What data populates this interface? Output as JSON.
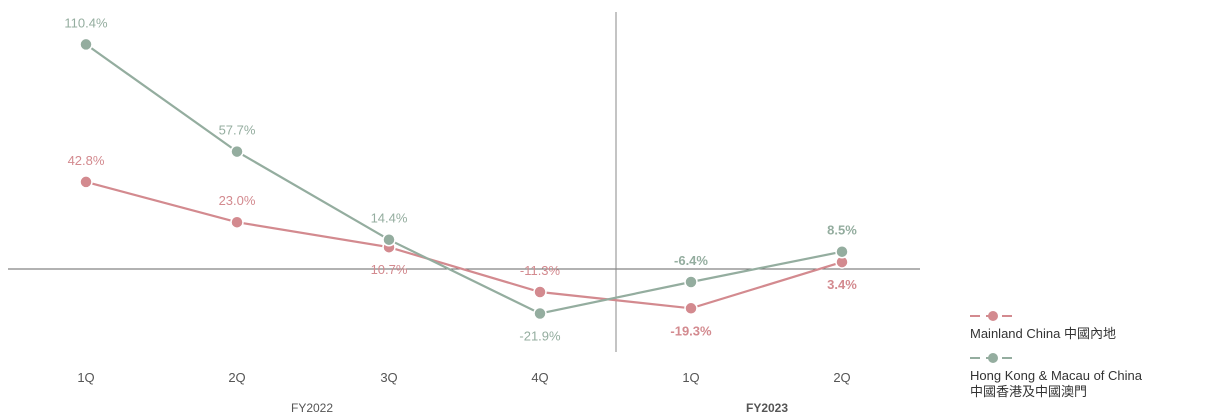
{
  "chart_data": {
    "type": "line",
    "categories": [
      "1Q",
      "2Q",
      "3Q",
      "4Q",
      "1Q",
      "2Q"
    ],
    "groups": [
      {
        "label": "FY2022",
        "bold": false
      },
      {
        "label": "FY2023",
        "bold": true
      }
    ],
    "series": [
      {
        "name": "Mainland China 中國內地",
        "color": "#d38a8f",
        "values": [
          42.8,
          23.0,
          10.7,
          -11.3,
          -19.3,
          3.4
        ],
        "labels": [
          "42.8%",
          "23.0%",
          "10.7%",
          "-11.3%",
          "-19.3%",
          "3.4%"
        ]
      },
      {
        "name": "Hong Kong & Macau of China 中國香港及中國澳門",
        "color": "#94ad9f",
        "values": [
          110.4,
          57.7,
          14.4,
          -21.9,
          -6.4,
          8.5
        ],
        "labels": [
          "110.4%",
          "57.7%",
          "14.4%",
          "-21.9%",
          "-6.4%",
          "8.5%"
        ]
      }
    ],
    "ylim": [
      -40,
      125
    ],
    "grid": false,
    "legend": "bottom-right"
  },
  "legend": {
    "mainland_label": "Mainland China 中國內地",
    "hk_line1": "Hong Kong & Macau of China",
    "hk_line2": "中國香港及中國澳門"
  }
}
